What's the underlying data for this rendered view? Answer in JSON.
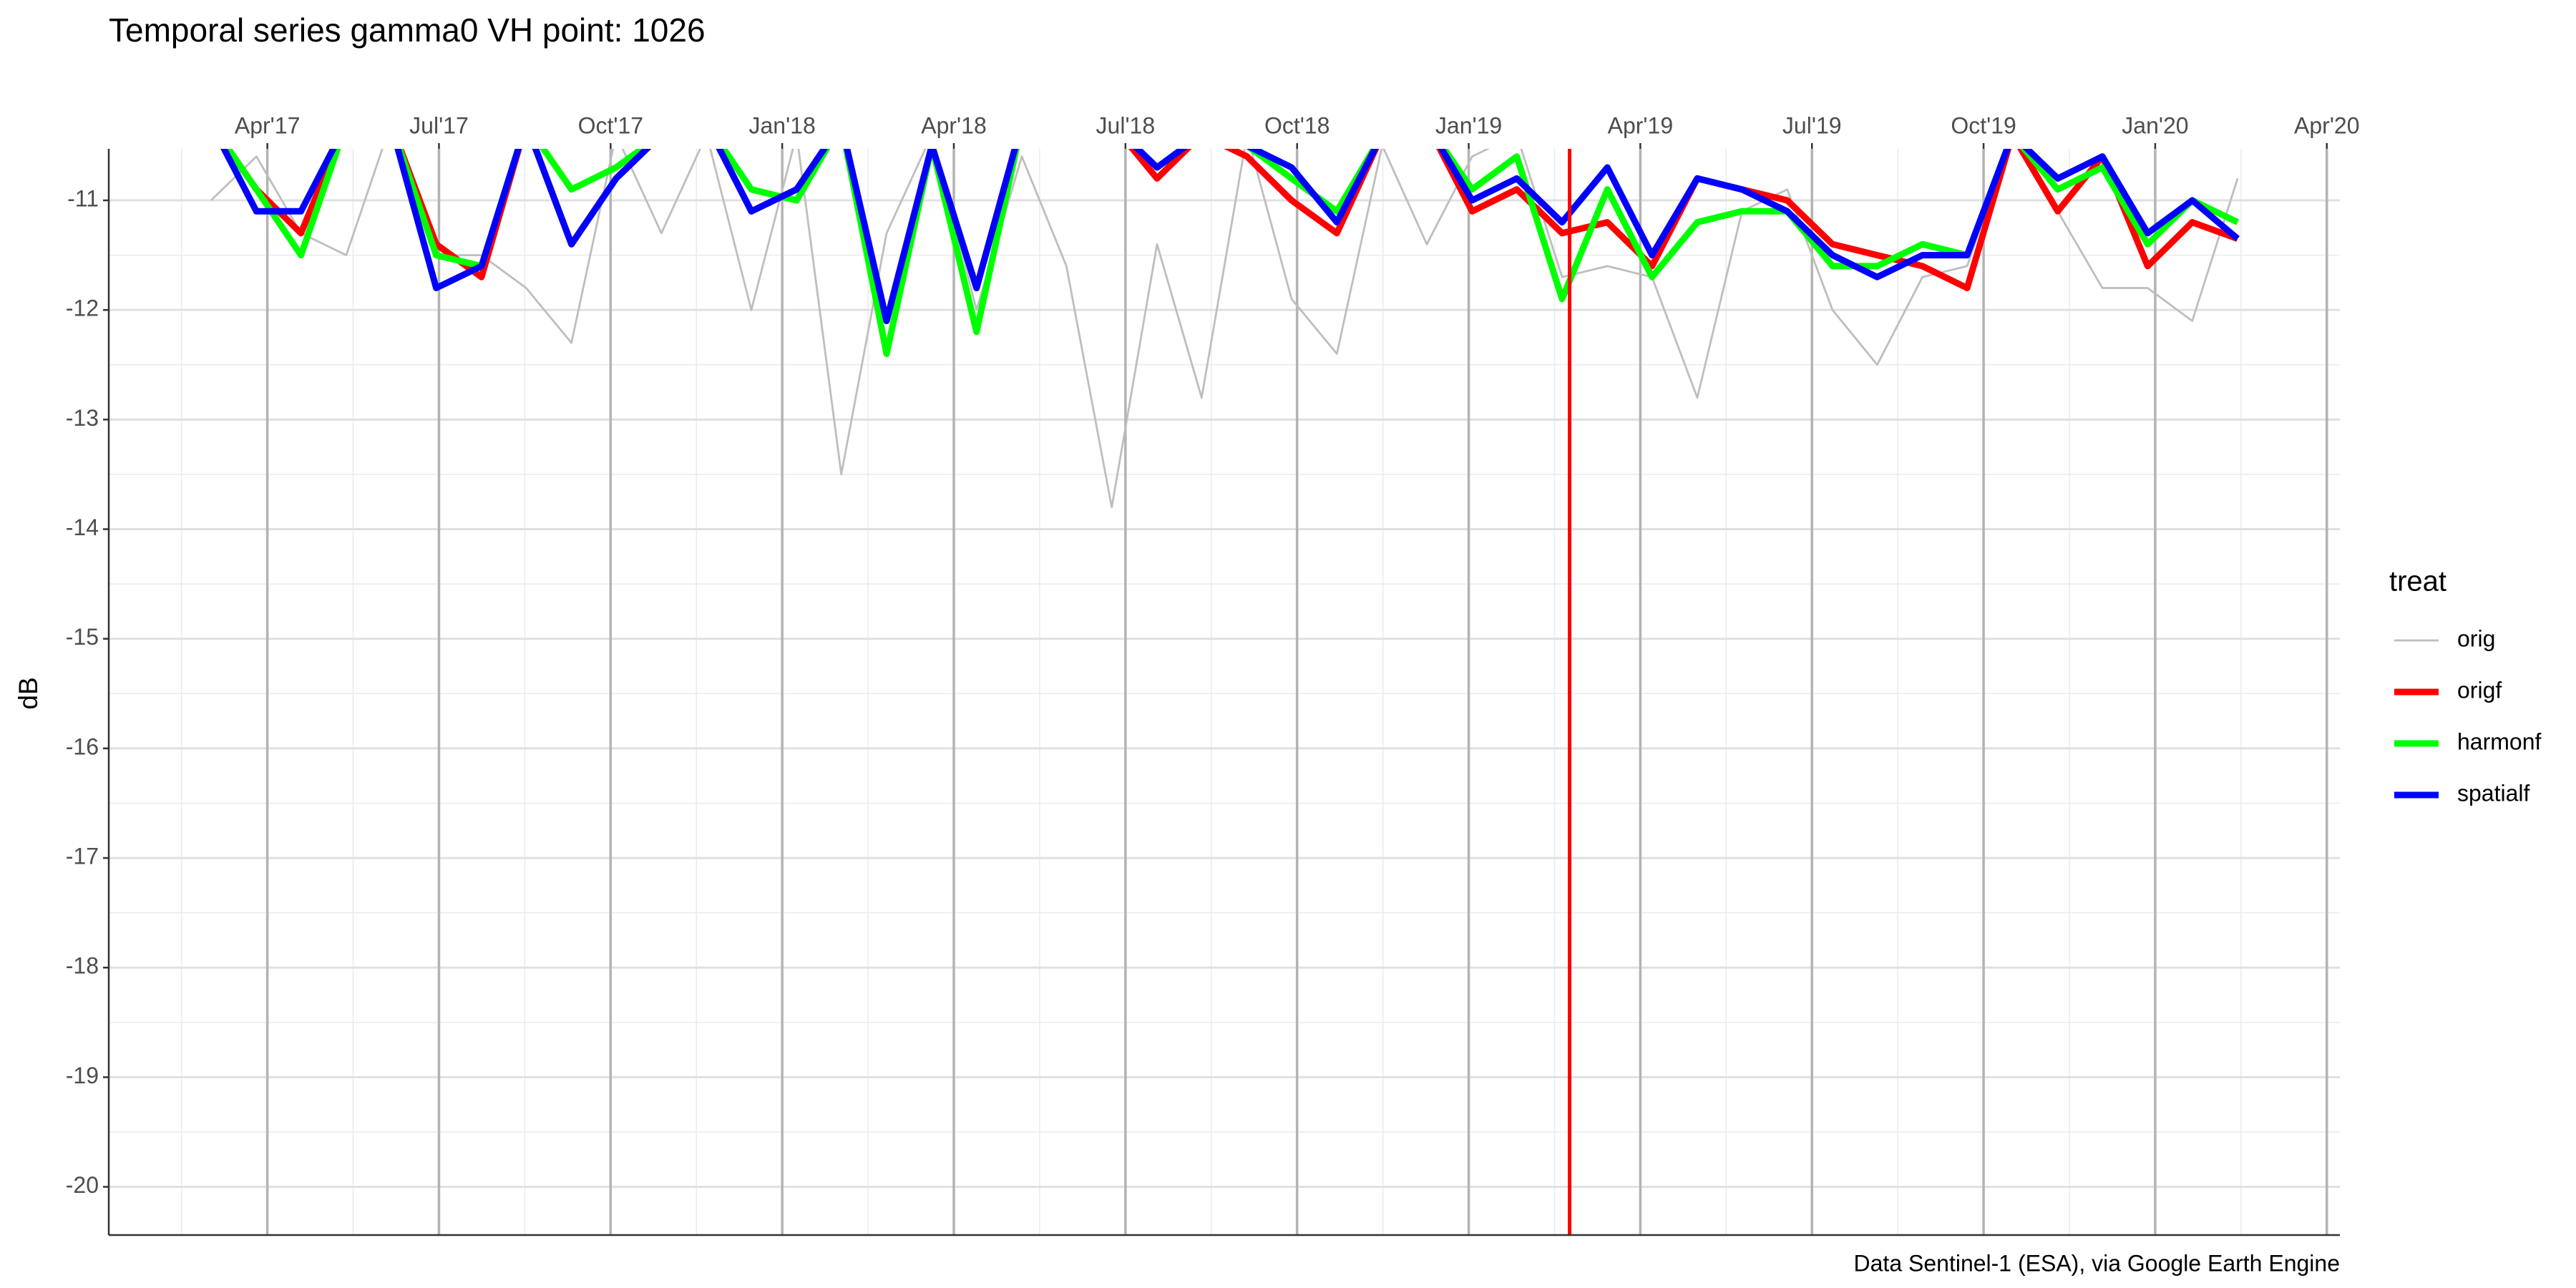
{
  "chart_data": {
    "type": "line",
    "title": "Temporal series gamma0 VH point: 1026",
    "y_label": "dB",
    "caption": "Data Sentinel-1 (ESA), via Google Earth Engine",
    "legend_title": "treat",
    "legend_position": "right",
    "grid": true,
    "x": [
      2017.168,
      2017.234,
      2017.299,
      2017.365,
      2017.43,
      2017.496,
      2017.562,
      2017.627,
      2017.693,
      2017.758,
      2017.824,
      2017.89,
      2017.955,
      2018.021,
      2018.086,
      2018.152,
      2018.218,
      2018.283,
      2018.349,
      2018.414,
      2018.48,
      2018.546,
      2018.611,
      2018.677,
      2018.742,
      2018.808,
      2018.874,
      2018.939,
      2019.005,
      2019.07,
      2019.136,
      2019.202,
      2019.267,
      2019.333,
      2019.398,
      2019.464,
      2019.53,
      2019.595,
      2019.661,
      2019.726,
      2019.792,
      2019.858,
      2019.923,
      2019.989,
      2020.054,
      2020.12
    ],
    "series": [
      {
        "name": "orig",
        "color": "#bebebe",
        "width": 2.8,
        "values": [
          -11.0,
          -10.6,
          -11.3,
          -11.5,
          -10.3,
          -11.5,
          -11.5,
          -11.8,
          -12.3,
          -10.4,
          -11.3,
          -10.4,
          -12.0,
          -10.4,
          -13.5,
          -11.3,
          -10.4,
          -12.0,
          -10.6,
          -11.6,
          -13.8,
          -11.4,
          -12.8,
          -10.4,
          -11.9,
          -12.4,
          -10.5,
          -11.4,
          -10.6,
          -10.4,
          -11.7,
          -11.6,
          -11.7,
          -12.8,
          -11.1,
          -10.9,
          -12.0,
          -12.5,
          -11.7,
          -11.6,
          -10.4,
          -11.1,
          -11.8,
          -11.8,
          -12.1,
          -10.8
        ]
      },
      {
        "name": "origf",
        "color": "#ff0000",
        "width": 9,
        "values": [
          -10.3,
          -10.9,
          -11.3,
          -10.3,
          -10.3,
          -11.4,
          -11.7,
          -10.3,
          -11.4,
          -10.8,
          -10.4,
          -10.3,
          -11.1,
          -10.9,
          -10.3,
          -12.1,
          -10.5,
          -11.8,
          -10.3,
          -10.4,
          -10.3,
          -10.8,
          -10.4,
          -10.6,
          -11.0,
          -11.3,
          -10.4,
          -10.3,
          -11.1,
          -10.9,
          -11.3,
          -11.2,
          -11.6,
          -10.8,
          -10.9,
          -11.0,
          -11.4,
          -11.5,
          -11.6,
          -11.8,
          -10.4,
          -11.1,
          -10.6,
          -11.6,
          -11.2,
          -11.35
        ]
      },
      {
        "name": "harmonf",
        "color": "#00ff00",
        "width": 9,
        "values": [
          -10.3,
          -10.9,
          -11.5,
          -10.3,
          -10.3,
          -11.5,
          -11.6,
          -10.3,
          -10.9,
          -10.7,
          -10.4,
          -10.3,
          -10.9,
          -11.0,
          -10.3,
          -12.4,
          -10.5,
          -12.2,
          -10.3,
          -10.4,
          -10.3,
          -10.7,
          -10.4,
          -10.5,
          -10.8,
          -11.1,
          -10.4,
          -10.3,
          -10.9,
          -10.6,
          -11.9,
          -10.9,
          -11.7,
          -11.2,
          -11.1,
          -11.1,
          -11.6,
          -11.6,
          -11.4,
          -11.5,
          -10.4,
          -10.9,
          -10.7,
          -11.4,
          -11.0,
          -11.2
        ]
      },
      {
        "name": "spatialf",
        "color": "#0000ff",
        "width": 9,
        "values": [
          -10.3,
          -11.1,
          -11.1,
          -10.3,
          -10.3,
          -11.8,
          -11.6,
          -10.3,
          -11.4,
          -10.8,
          -10.4,
          -10.3,
          -11.1,
          -10.9,
          -10.3,
          -12.1,
          -10.5,
          -11.8,
          -10.3,
          -10.4,
          -10.3,
          -10.7,
          -10.4,
          -10.5,
          -10.7,
          -11.2,
          -10.4,
          -10.3,
          -11.0,
          -10.8,
          -11.2,
          -10.7,
          -11.5,
          -10.8,
          -10.9,
          -11.1,
          -11.5,
          -11.7,
          -11.5,
          -11.5,
          -10.4,
          -10.8,
          -10.6,
          -11.3,
          -11.0,
          -11.35
        ]
      }
    ],
    "vline": 2019.147,
    "vline_color": "#ff0000",
    "xlim": [
      2017.019,
      2020.269
    ],
    "ylim": [
      -20.44,
      -10.53
    ],
    "xticks": [
      {
        "value": 2017.25,
        "label": "Apr'17"
      },
      {
        "value": 2017.5,
        "label": "Jul'17"
      },
      {
        "value": 2017.75,
        "label": "Oct'17"
      },
      {
        "value": 2018.0,
        "label": "Jan'18"
      },
      {
        "value": 2018.25,
        "label": "Apr'18"
      },
      {
        "value": 2018.5,
        "label": "Jul'18"
      },
      {
        "value": 2018.75,
        "label": "Oct'18"
      },
      {
        "value": 2019.0,
        "label": "Jan'19"
      },
      {
        "value": 2019.25,
        "label": "Apr'19"
      },
      {
        "value": 2019.5,
        "label": "Jul'19"
      },
      {
        "value": 2019.75,
        "label": "Oct'19"
      },
      {
        "value": 2020.0,
        "label": "Jan'20"
      },
      {
        "value": 2020.25,
        "label": "Apr'20"
      }
    ],
    "yticks": [
      -20,
      -19,
      -18,
      -17,
      -16,
      -15,
      -14,
      -13,
      -12,
      -11
    ]
  }
}
